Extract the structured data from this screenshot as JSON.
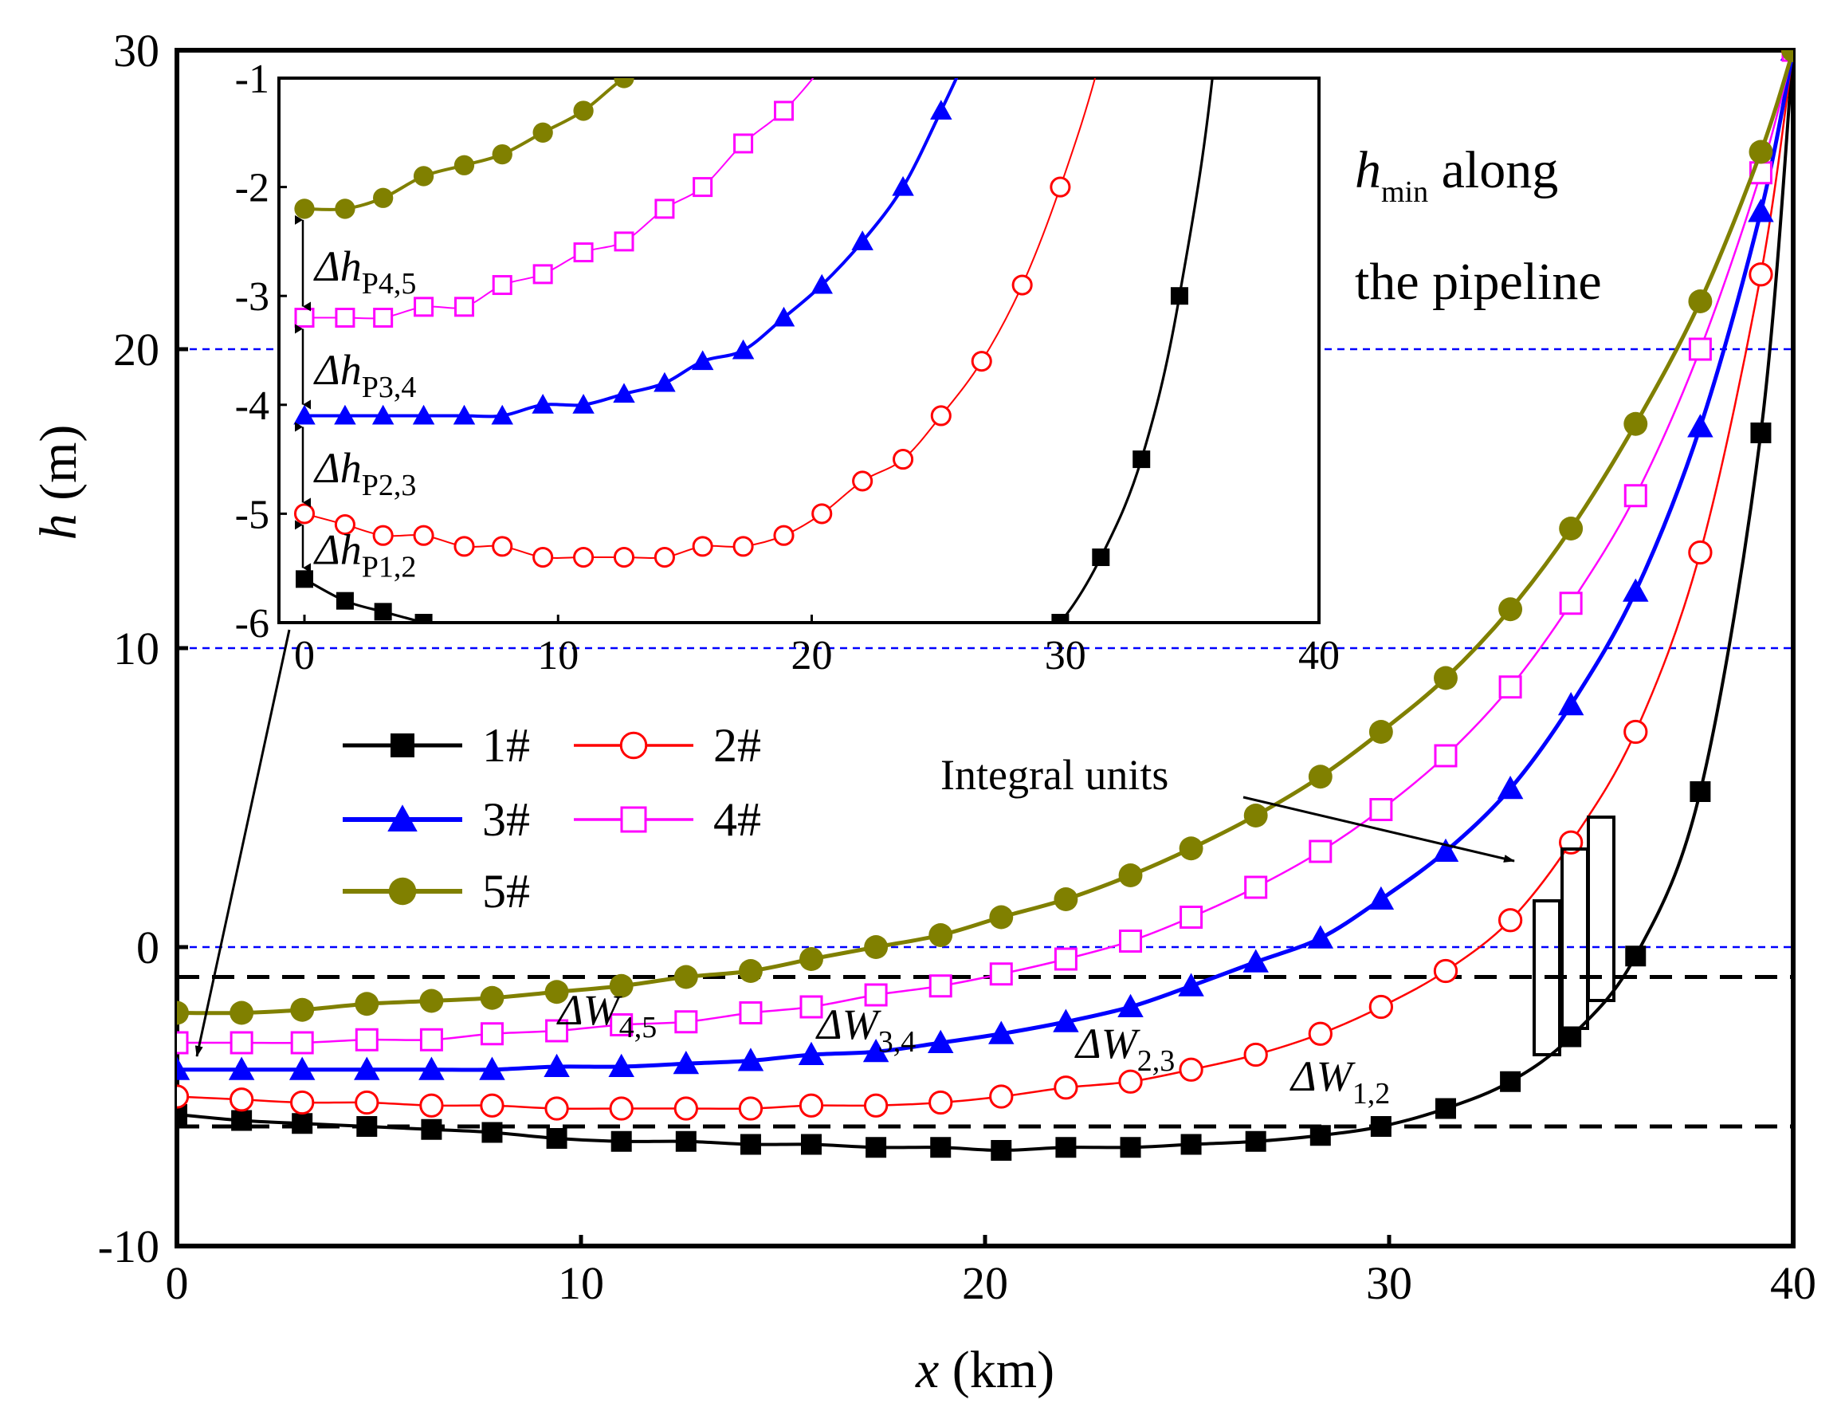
{
  "chart_data": {
    "type": "line",
    "title": "",
    "xlabel": "x (km)",
    "ylabel": "h (m)",
    "xlabel_var": "x",
    "xlabel_unit": " (km)",
    "ylabel_var": "h",
    "ylabel_unit": " (m)",
    "xlim": [
      0,
      40
    ],
    "ylim": [
      -10,
      30
    ],
    "xticks": [
      0,
      10,
      20,
      30,
      40
    ],
    "yticks": [
      -10,
      0,
      10,
      20,
      30
    ],
    "hlines_dotted": [
      20,
      10,
      0
    ],
    "hlines_dashed": [
      -1,
      -6
    ],
    "series": [
      {
        "name": "1#",
        "color": "#000000",
        "marker": "filled-square",
        "x": [
          0,
          1.6,
          3.1,
          4.7,
          6.3,
          7.8,
          9.4,
          11,
          12.6,
          14.2,
          15.7,
          17.3,
          18.9,
          20.4,
          22,
          23.6,
          25.1,
          26.7,
          28.3,
          29.8,
          31.4,
          33,
          34.5,
          36.1,
          37.7,
          39.2,
          40
        ],
        "y": [
          -5.6,
          -5.8,
          -5.9,
          -6.0,
          -6.1,
          -6.2,
          -6.4,
          -6.5,
          -6.5,
          -6.6,
          -6.6,
          -6.7,
          -6.7,
          -6.8,
          -6.7,
          -6.7,
          -6.6,
          -6.5,
          -6.3,
          -6.0,
          -5.4,
          -4.5,
          -3.0,
          -0.3,
          5.2,
          17.2,
          30
        ]
      },
      {
        "name": "2#",
        "color": "#ff0000",
        "marker": "open-circle",
        "x": [
          0,
          1.6,
          3.1,
          4.7,
          6.3,
          7.8,
          9.4,
          11,
          12.6,
          14.2,
          15.7,
          17.3,
          18.9,
          20.4,
          22,
          23.6,
          25.1,
          26.7,
          28.3,
          29.8,
          31.4,
          33,
          34.5,
          36.1,
          37.7,
          39.2,
          40
        ],
        "y": [
          -5.0,
          -5.1,
          -5.2,
          -5.2,
          -5.3,
          -5.3,
          -5.4,
          -5.4,
          -5.4,
          -5.4,
          -5.3,
          -5.3,
          -5.2,
          -5.0,
          -4.7,
          -4.5,
          -4.1,
          -3.6,
          -2.9,
          -2.0,
          -0.8,
          0.9,
          3.5,
          7.2,
          13.2,
          22.5,
          30
        ]
      },
      {
        "name": "3#",
        "color": "#0000ff",
        "marker": "filled-triangle",
        "x": [
          0,
          1.6,
          3.1,
          4.7,
          6.3,
          7.8,
          9.4,
          11,
          12.6,
          14.2,
          15.7,
          17.3,
          18.9,
          20.4,
          22,
          23.6,
          25.1,
          26.7,
          28.3,
          29.8,
          31.4,
          33,
          34.5,
          36.1,
          37.7,
          39.2,
          40
        ],
        "y": [
          -4.1,
          -4.1,
          -4.1,
          -4.1,
          -4.1,
          -4.1,
          -4.0,
          -4.0,
          -3.9,
          -3.8,
          -3.6,
          -3.5,
          -3.2,
          -2.9,
          -2.5,
          -2.0,
          -1.3,
          -0.5,
          0.3,
          1.6,
          3.2,
          5.3,
          8.1,
          11.9,
          17.4,
          24.6,
          30
        ]
      },
      {
        "name": "4#",
        "color": "#ff00ff",
        "marker": "open-square",
        "x": [
          0,
          1.6,
          3.1,
          4.7,
          6.3,
          7.8,
          9.4,
          11,
          12.6,
          14.2,
          15.7,
          17.3,
          18.9,
          20.4,
          22,
          23.6,
          25.1,
          26.7,
          28.3,
          29.8,
          31.4,
          33,
          34.5,
          36.1,
          37.7,
          39.2,
          40
        ],
        "y": [
          -3.2,
          -3.2,
          -3.2,
          -3.1,
          -3.1,
          -2.9,
          -2.8,
          -2.6,
          -2.5,
          -2.2,
          -2.0,
          -1.6,
          -1.3,
          -0.9,
          -0.4,
          0.2,
          1.0,
          2.0,
          3.2,
          4.6,
          6.4,
          8.7,
          11.5,
          15.1,
          20.0,
          25.9,
          30
        ]
      },
      {
        "name": "5#",
        "color": "#808000",
        "marker": "filled-circle",
        "x": [
          0,
          1.6,
          3.1,
          4.7,
          6.3,
          7.8,
          9.4,
          11,
          12.6,
          14.2,
          15.7,
          17.3,
          18.9,
          20.4,
          22,
          23.6,
          25.1,
          26.7,
          28.3,
          29.8,
          31.4,
          33,
          34.5,
          36.1,
          37.7,
          39.2,
          40
        ],
        "y": [
          -2.2,
          -2.2,
          -2.1,
          -1.9,
          -1.8,
          -1.7,
          -1.5,
          -1.3,
          -1.0,
          -0.8,
          -0.4,
          0.0,
          0.4,
          1.0,
          1.6,
          2.4,
          3.3,
          4.4,
          5.7,
          7.2,
          9.0,
          11.3,
          14.0,
          17.5,
          21.6,
          26.6,
          30
        ]
      }
    ],
    "annotations": {
      "hmin_var": "h",
      "hmin_sub": "min",
      "hmin_line1_rest": " along",
      "hmin_line2": "the pipeline",
      "integral_units": "Integral units",
      "dW45_main": "ΔW",
      "dW45_sub": "4,5",
      "dW34_main": "ΔW",
      "dW34_sub": "3,4",
      "dW23_main": "ΔW",
      "dW23_sub": "2,3",
      "dW12_main": "ΔW",
      "dW12_sub": "1,2"
    },
    "inset": {
      "xlim": [
        0,
        40
      ],
      "ylim": [
        -6,
        -1
      ],
      "xticks": [
        0,
        10,
        20,
        30,
        40
      ],
      "yticks": [
        -1,
        -2,
        -3,
        -4,
        -5,
        -6
      ],
      "dh_labels": [
        {
          "main": "Δh",
          "sub": "P4,5"
        },
        {
          "main": "Δh",
          "sub": "P3,4"
        },
        {
          "main": "Δh",
          "sub": "P2,3"
        },
        {
          "main": "Δh",
          "sub": "P1,2"
        }
      ]
    }
  }
}
